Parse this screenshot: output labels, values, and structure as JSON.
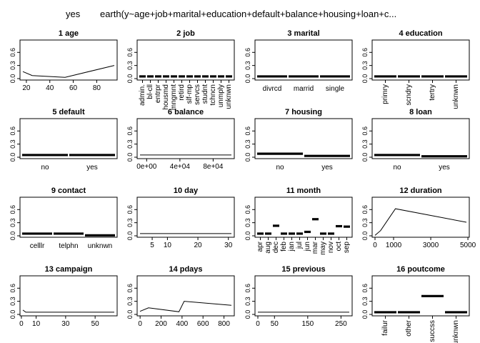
{
  "figure": {
    "title_left": "yes",
    "title_right": "earth(y~age+job+marital+education+default+balance+housing+loan+c..."
  },
  "chart_data": [
    {
      "id": 1,
      "title": "1  age",
      "type": "line",
      "x": [
        17,
        25,
        53,
        95
      ],
      "y": [
        0.16,
        0.07,
        0.03,
        0.3
      ],
      "xlim": [
        17,
        95
      ],
      "ylim": [
        0,
        0.85
      ],
      "xticks": [
        {
          "v": 20,
          "label": "20"
        },
        {
          "v": 40,
          "label": "40"
        },
        {
          "v": 60,
          "label": "60"
        },
        {
          "v": 80,
          "label": "80"
        }
      ],
      "yticks": [
        {
          "v": 0,
          "label": "0.0"
        },
        {
          "v": 0.3,
          "label": "0.3"
        },
        {
          "v": 0.6,
          "label": "0.6"
        }
      ]
    },
    {
      "id": 2,
      "title": "2  job",
      "type": "bar",
      "categories": [
        "admin.",
        "bl-cll",
        "entrpr",
        "housmd",
        "mngmnt",
        "retird",
        "slf-mp",
        "servcs",
        "studnt",
        "tchncn",
        "unmply",
        "unknwn"
      ],
      "values": [
        0.05,
        0.05,
        0.05,
        0.05,
        0.05,
        0.05,
        0.05,
        0.05,
        0.05,
        0.05,
        0.05,
        0.05
      ],
      "rotate": true,
      "ylim": [
        0,
        0.85
      ],
      "yticks": [
        {
          "v": 0,
          "label": "0.0"
        },
        {
          "v": 0.3,
          "label": "0.3"
        },
        {
          "v": 0.6,
          "label": "0.6"
        }
      ]
    },
    {
      "id": 3,
      "title": "3  marital",
      "type": "bar",
      "categories": [
        "divrcd",
        "marrid",
        "single"
      ],
      "values": [
        0.05,
        0.05,
        0.05
      ],
      "rotate": false,
      "ylim": [
        0,
        0.85
      ],
      "yticks": [
        {
          "v": 0,
          "label": "0.0"
        },
        {
          "v": 0.3,
          "label": "0.3"
        },
        {
          "v": 0.6,
          "label": "0.6"
        }
      ]
    },
    {
      "id": 4,
      "title": "4  education",
      "type": "bar",
      "categories": [
        "primry",
        "scndry",
        "tertry",
        "unknwn"
      ],
      "values": [
        0.05,
        0.05,
        0.05,
        0.05
      ],
      "rotate": true,
      "ylim": [
        0,
        0.85
      ],
      "yticks": [
        {
          "v": 0,
          "label": "0.0"
        },
        {
          "v": 0.3,
          "label": "0.3"
        },
        {
          "v": 0.6,
          "label": "0.6"
        }
      ]
    },
    {
      "id": 5,
      "title": "5  default",
      "type": "bar",
      "categories": [
        "no",
        "yes"
      ],
      "values": [
        0.05,
        0.05
      ],
      "rotate": false,
      "ylim": [
        0,
        0.85
      ],
      "yticks": [
        {
          "v": 0,
          "label": "0.0"
        },
        {
          "v": 0.3,
          "label": "0.3"
        },
        {
          "v": 0.6,
          "label": "0.6"
        }
      ]
    },
    {
      "id": 6,
      "title": "6  balance",
      "type": "line",
      "x": [
        -8000,
        102000
      ],
      "y": [
        0.05,
        0.05
      ],
      "xlim": [
        -8000,
        102000
      ],
      "ylim": [
        0,
        0.85
      ],
      "xticks": [
        {
          "v": 0,
          "label": "0e+00"
        },
        {
          "v": 40000,
          "label": "4e+04"
        },
        {
          "v": 80000,
          "label": "8e+04"
        }
      ],
      "yticks": [
        {
          "v": 0,
          "label": "0.0"
        },
        {
          "v": 0.3,
          "label": "0.3"
        },
        {
          "v": 0.6,
          "label": "0.6"
        }
      ]
    },
    {
      "id": 7,
      "title": "7  housing",
      "type": "bar",
      "categories": [
        "no",
        "yes"
      ],
      "values": [
        0.08,
        0.03
      ],
      "rotate": false,
      "ylim": [
        0,
        0.85
      ],
      "yticks": [
        {
          "v": 0,
          "label": "0.0"
        },
        {
          "v": 0.3,
          "label": "0.3"
        },
        {
          "v": 0.6,
          "label": "0.6"
        }
      ]
    },
    {
      "id": 8,
      "title": "8  loan",
      "type": "bar",
      "categories": [
        "no",
        "yes"
      ],
      "values": [
        0.05,
        0.02
      ],
      "rotate": false,
      "ylim": [
        0,
        0.85
      ],
      "yticks": [
        {
          "v": 0,
          "label": "0.0"
        },
        {
          "v": 0.3,
          "label": "0.3"
        },
        {
          "v": 0.6,
          "label": "0.6"
        }
      ]
    },
    {
      "id": 9,
      "title": "9  contact",
      "type": "bar",
      "categories": [
        "celllr",
        "telphn",
        "unknwn"
      ],
      "values": [
        0.05,
        0.05,
        0.01
      ],
      "rotate": false,
      "ylim": [
        0,
        0.85
      ],
      "yticks": [
        {
          "v": 0,
          "label": "0.0"
        },
        {
          "v": 0.3,
          "label": "0.3"
        },
        {
          "v": 0.6,
          "label": "0.6"
        }
      ]
    },
    {
      "id": 10,
      "title": "10  day",
      "type": "line",
      "x": [
        1,
        31
      ],
      "y": [
        0.05,
        0.05
      ],
      "xlim": [
        1,
        31
      ],
      "ylim": [
        0,
        0.85
      ],
      "xticks": [
        {
          "v": 5,
          "label": "5"
        },
        {
          "v": 10,
          "label": "10"
        },
        {
          "v": 20,
          "label": "20"
        },
        {
          "v": 30,
          "label": "30"
        }
      ],
      "yticks": [
        {
          "v": 0,
          "label": "0.0"
        },
        {
          "v": 0.3,
          "label": "0.3"
        },
        {
          "v": 0.6,
          "label": "0.6"
        }
      ]
    },
    {
      "id": 11,
      "title": "11  month",
      "type": "bar",
      "categories": [
        "apr",
        "aug",
        "dec",
        "feb",
        "jan",
        "jul",
        "jun",
        "mar",
        "may",
        "nov",
        "oct",
        "sep"
      ],
      "values": [
        0.05,
        0.05,
        0.23,
        0.05,
        0.05,
        0.05,
        0.09,
        0.38,
        0.05,
        0.05,
        0.22,
        0.21
      ],
      "rotate": true,
      "ylim": [
        0,
        0.85
      ],
      "yticks": [
        {
          "v": 0,
          "label": "0.0"
        },
        {
          "v": 0.3,
          "label": "0.3"
        },
        {
          "v": 0.6,
          "label": "0.6"
        }
      ]
    },
    {
      "id": 12,
      "title": "12  duration",
      "type": "line",
      "x": [
        0,
        300,
        1100,
        4920
      ],
      "y": [
        0.01,
        0.12,
        0.62,
        0.31
      ],
      "xlim": [
        0,
        4920
      ],
      "ylim": [
        0,
        0.85
      ],
      "xticks": [
        {
          "v": 0,
          "label": "0"
        },
        {
          "v": 1000,
          "label": "1000"
        },
        {
          "v": 3000,
          "label": "3000"
        },
        {
          "v": 5000,
          "label": "5000"
        }
      ],
      "yticks": [
        {
          "v": 0,
          "label": "0.0"
        },
        {
          "v": 0.3,
          "label": "0.3"
        },
        {
          "v": 0.6,
          "label": "0.6"
        }
      ]
    },
    {
      "id": 13,
      "title": "13  campaign",
      "type": "line",
      "x": [
        1,
        3,
        63
      ],
      "y": [
        0.1,
        0.05,
        0.05
      ],
      "xlim": [
        1,
        63
      ],
      "ylim": [
        0,
        0.85
      ],
      "xticks": [
        {
          "v": 0,
          "label": "0"
        },
        {
          "v": 10,
          "label": "10"
        },
        {
          "v": 30,
          "label": "30"
        },
        {
          "v": 50,
          "label": "50"
        }
      ],
      "yticks": [
        {
          "v": 0,
          "label": "0.0"
        },
        {
          "v": 0.3,
          "label": "0.3"
        },
        {
          "v": 0.6,
          "label": "0.6"
        }
      ]
    },
    {
      "id": 14,
      "title": "14  pdays",
      "type": "line",
      "x": [
        -1,
        80,
        370,
        420,
        871
      ],
      "y": [
        0.07,
        0.15,
        0.06,
        0.3,
        0.21
      ],
      "xlim": [
        -1,
        871
      ],
      "ylim": [
        0,
        0.85
      ],
      "xticks": [
        {
          "v": 0,
          "label": "0"
        },
        {
          "v": 200,
          "label": "200"
        },
        {
          "v": 400,
          "label": "400"
        },
        {
          "v": 600,
          "label": "600"
        },
        {
          "v": 800,
          "label": "800"
        }
      ],
      "yticks": [
        {
          "v": 0,
          "label": "0.0"
        },
        {
          "v": 0.3,
          "label": "0.3"
        },
        {
          "v": 0.6,
          "label": "0.6"
        }
      ]
    },
    {
      "id": 15,
      "title": "15  previous",
      "type": "line",
      "x": [
        0,
        275
      ],
      "y": [
        0.05,
        0.05
      ],
      "xlim": [
        0,
        275
      ],
      "ylim": [
        0,
        0.85
      ],
      "xticks": [
        {
          "v": 0,
          "label": "0"
        },
        {
          "v": 50,
          "label": "50"
        },
        {
          "v": 150,
          "label": "150"
        },
        {
          "v": 250,
          "label": "250"
        }
      ],
      "yticks": [
        {
          "v": 0,
          "label": "0.0"
        },
        {
          "v": 0.3,
          "label": "0.3"
        },
        {
          "v": 0.6,
          "label": "0.6"
        }
      ]
    },
    {
      "id": 16,
      "title": "16  poutcome",
      "type": "bar",
      "categories": [
        "failur",
        "other",
        "succss",
        "unknwn"
      ],
      "values": [
        0.05,
        0.05,
        0.42,
        0.05
      ],
      "rotate": true,
      "ylim": [
        0,
        0.85
      ],
      "yticks": [
        {
          "v": 0,
          "label": "0.0"
        },
        {
          "v": 0.3,
          "label": "0.3"
        },
        {
          "v": 0.6,
          "label": "0.6"
        }
      ]
    }
  ]
}
